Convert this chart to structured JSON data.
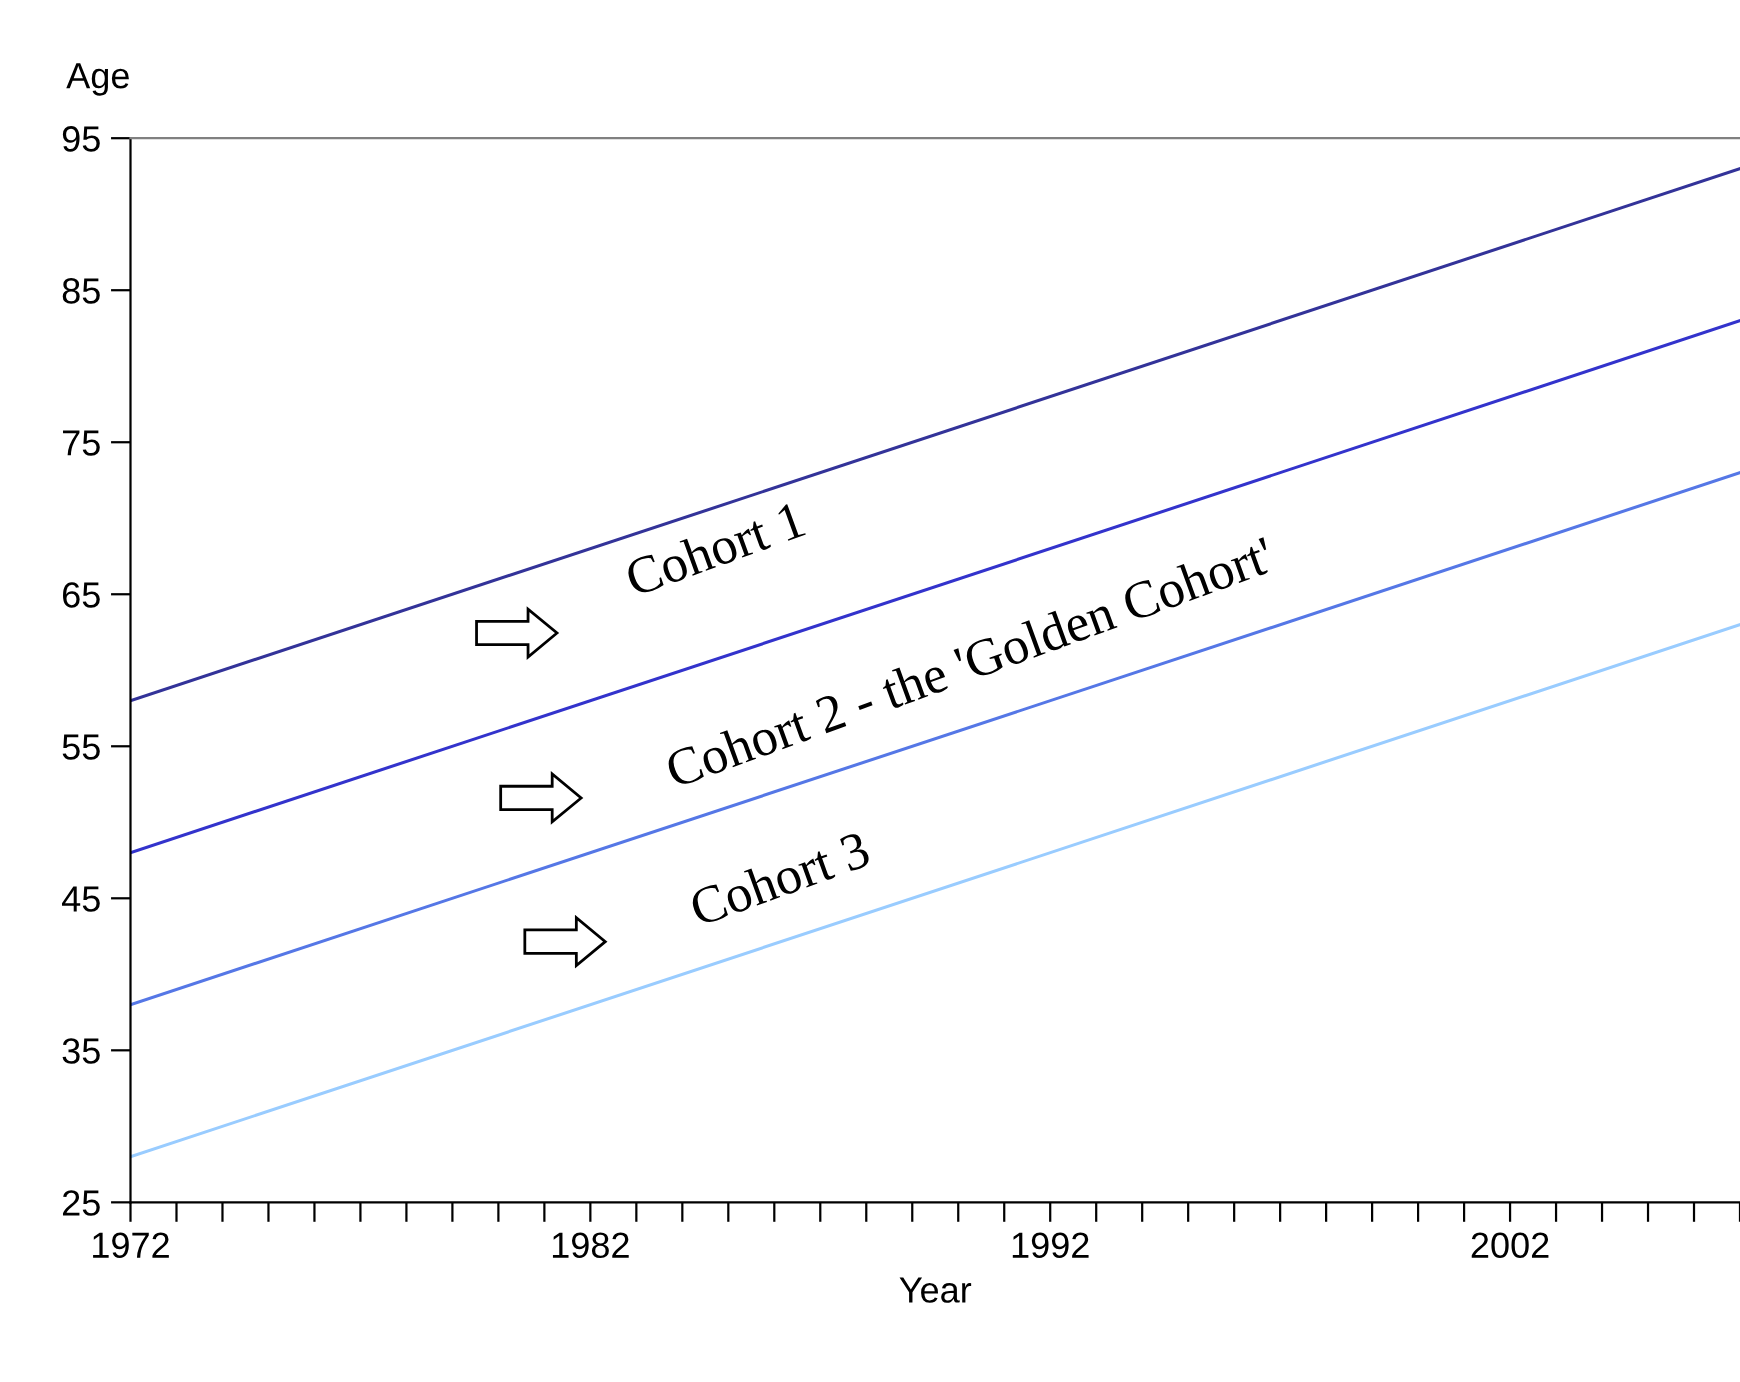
{
  "chart_data": {
    "type": "line",
    "ylabel": "Age",
    "xlabel": "Year",
    "x": [
      1972,
      2007
    ],
    "series": [
      {
        "color": "#333399",
        "values": [
          58,
          93
        ]
      },
      {
        "color": "#3333cc",
        "values": [
          48,
          83
        ]
      },
      {
        "color": "#5577e6",
        "values": [
          38,
          73
        ]
      },
      {
        "color": "#99ccff",
        "values": [
          28,
          63
        ]
      }
    ],
    "xlim": [
      1972,
      2007
    ],
    "ylim": [
      25,
      95
    ],
    "xticks": [
      1972,
      {
        "value": 1973,
        "label": null
      },
      {
        "value": 1974,
        "label": null
      },
      {
        "value": 1975,
        "label": null
      },
      {
        "value": 1976,
        "label": null
      },
      {
        "value": 1977,
        "label": null
      },
      {
        "value": 1978,
        "label": null
      },
      {
        "value": 1979,
        "label": null
      },
      {
        "value": 1980,
        "label": null
      },
      {
        "value": 1981,
        "label": null
      },
      1982,
      {
        "value": 1983,
        "label": null
      },
      {
        "value": 1984,
        "label": null
      },
      {
        "value": 1985,
        "label": null
      },
      {
        "value": 1986,
        "label": null
      },
      {
        "value": 1987,
        "label": null
      },
      {
        "value": 1988,
        "label": null
      },
      {
        "value": 1989,
        "label": null
      },
      {
        "value": 1990,
        "label": null
      },
      {
        "value": 1991,
        "label": null
      },
      1992,
      {
        "value": 1993,
        "label": null
      },
      {
        "value": 1994,
        "label": null
      },
      {
        "value": 1995,
        "label": null
      },
      {
        "value": 1996,
        "label": null
      },
      {
        "value": 1997,
        "label": null
      },
      {
        "value": 1998,
        "label": null
      },
      {
        "value": 1999,
        "label": null
      },
      {
        "value": 2000,
        "label": null
      },
      {
        "value": 2001,
        "label": null
      },
      2002,
      {
        "value": 2003,
        "label": null
      },
      {
        "value": 2004,
        "label": null
      },
      {
        "value": 2005,
        "label": null
      },
      {
        "value": 2006,
        "label": null
      },
      {
        "value": 2007,
        "label": null
      }
    ],
    "yticks": [
      25,
      35,
      45,
      55,
      65,
      75,
      85,
      95
    ],
    "annotations": [
      "Cohort 1",
      "Cohort 2 - the 'Golden Cohort'",
      "Cohort 3"
    ],
    "grid": false,
    "legend": false,
    "marker": "none",
    "line_style": "solid"
  }
}
